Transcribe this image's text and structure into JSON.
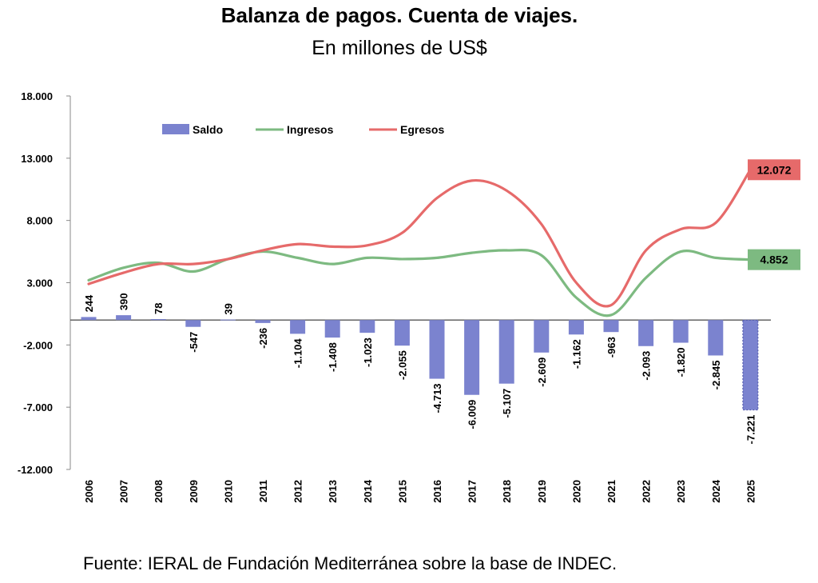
{
  "header": {
    "title": "Balanza de pagos. Cuenta de viajes.",
    "subtitle": "En millones de US$"
  },
  "footer": {
    "source": "Fuente: IERAL de Fundación Mediterránea sobre la base de INDEC."
  },
  "colors": {
    "saldo": "#7b83cf",
    "ingresos": "#7dba81",
    "egresos": "#e66a6a"
  },
  "chart_data": {
    "type": "bar",
    "title": "Balanza de pagos. Cuenta de viajes.",
    "ylim": [
      -12000,
      18000
    ],
    "yticks": [
      18000,
      13000,
      8000,
      3000,
      -2000,
      -7000,
      -12000
    ],
    "ytick_labels": [
      "18.000",
      "13.000",
      "8.000",
      "3.000",
      "-2.000",
      "-7.000",
      "-12.000"
    ],
    "legend_position": "top-left",
    "categories": [
      "2006",
      "2007",
      "2008",
      "2009",
      "2010",
      "2011",
      "2012",
      "2013",
      "2014",
      "2015",
      "2016",
      "2017",
      "2018",
      "2019",
      "2020",
      "2021",
      "2022",
      "2023",
      "2024",
      "2025"
    ],
    "series": [
      {
        "name": "Saldo",
        "kind": "bar",
        "values": [
          244,
          390,
          78,
          -547,
          39,
          -236,
          -1104,
          -1408,
          -1023,
          -2055,
          -4713,
          -6009,
          -5107,
          -2609,
          -1162,
          -963,
          -2093,
          -1820,
          -2845,
          -7221
        ],
        "labels": [
          "244",
          "390",
          "78",
          "-547",
          "39",
          "-236",
          "-1.104",
          "-1.408",
          "-1.023",
          "-2.055",
          "-4.713",
          "-6.009",
          "-5.107",
          "-2.609",
          "-1.162",
          "-963",
          "-2.093",
          "-1.820",
          "-2.845",
          "-7.221"
        ]
      },
      {
        "name": "Ingresos",
        "kind": "line",
        "values": [
          3200,
          4200,
          4600,
          3900,
          4900,
          5500,
          5000,
          4500,
          5000,
          4900,
          5000,
          5400,
          5600,
          5200,
          1800,
          400,
          3400,
          5500,
          5000,
          4852
        ],
        "end_label": "4.852"
      },
      {
        "name": "Egresos",
        "kind": "line",
        "values": [
          2900,
          3800,
          4500,
          4500,
          4900,
          5600,
          6100,
          5900,
          6000,
          7000,
          9800,
          11200,
          10400,
          7700,
          3000,
          1200,
          5600,
          7300,
          7800,
          12072
        ],
        "end_label": "12.072"
      }
    ]
  }
}
